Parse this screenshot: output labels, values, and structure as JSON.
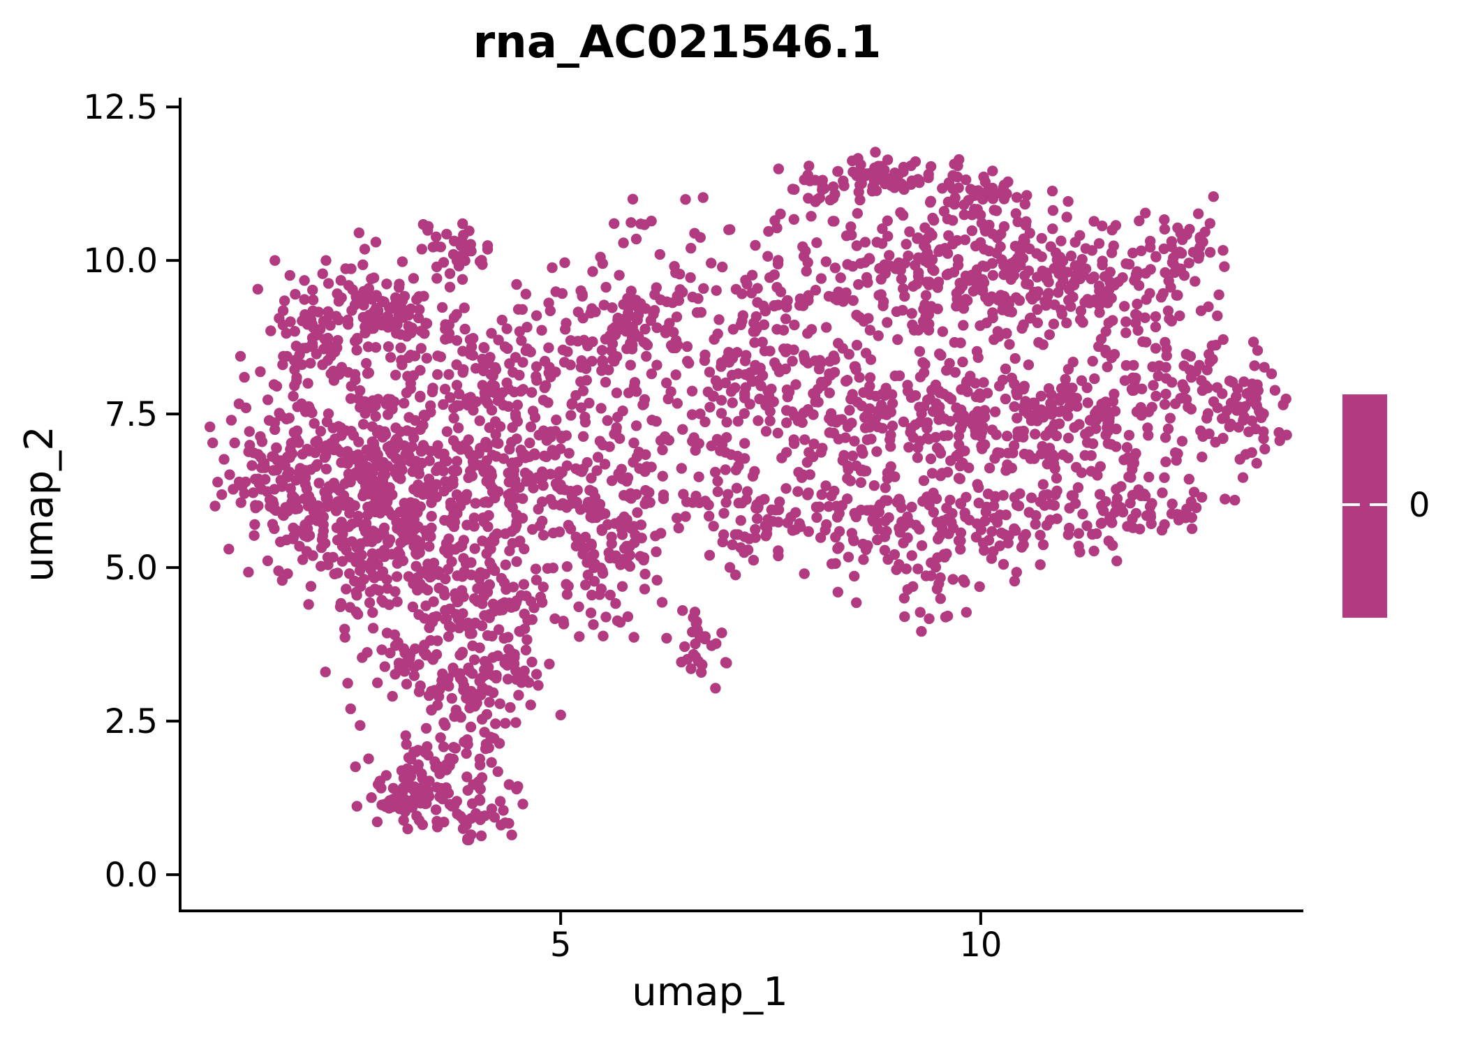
{
  "title": "rna_AC021546.1",
  "colorbar": {
    "tick_label": "0",
    "tick_value": 0,
    "color": "#B13A80"
  },
  "chart_data": {
    "type": "scatter",
    "title": "rna_AC021546.1",
    "xlabel": "umap_1",
    "ylabel": "umap_2",
    "xlim": [
      0.47,
      13.84
    ],
    "ylim": [
      -0.59,
      12.65
    ],
    "x_ticks": [
      5,
      10
    ],
    "x_tick_labels": [
      "5",
      "10"
    ],
    "y_ticks": [
      0,
      2.5,
      5,
      7.5,
      10,
      12.5
    ],
    "y_tick_labels": [
      "0.0",
      "2.5",
      "5.0",
      "7.5",
      "10.0",
      "12.5"
    ],
    "grid": false,
    "legend": {
      "type": "colorbar",
      "position": "right",
      "tick_labels": [
        "0"
      ],
      "single_value": 0
    },
    "point_color": "#B13A80",
    "point_radius_px": 7.7,
    "feature_value_all_points": 0,
    "seed": 7,
    "clusters_comment": "each cluster = [center_x, center_y, sigma_x, sigma_y, n_points] in umap coords, approximating the plotted cell density",
    "clusters": [
      [
        3.67,
        10.2,
        0.2,
        0.25,
        28
      ],
      [
        3.1,
        9.15,
        0.5,
        0.45,
        120
      ],
      [
        2.3,
        8.85,
        0.42,
        0.5,
        85
      ],
      [
        1.55,
        6.6,
        0.33,
        0.8,
        85
      ],
      [
        2.5,
        7.0,
        0.55,
        0.6,
        170
      ],
      [
        3.4,
        6.35,
        0.6,
        0.65,
        190
      ],
      [
        2.4,
        5.8,
        0.45,
        0.5,
        120
      ],
      [
        4.25,
        7.9,
        0.45,
        0.65,
        105
      ],
      [
        4.5,
        6.7,
        0.38,
        0.5,
        75
      ],
      [
        3.2,
        4.9,
        0.5,
        0.45,
        120
      ],
      [
        4.1,
        4.4,
        0.42,
        0.45,
        85
      ],
      [
        3.5,
        3.35,
        0.45,
        0.4,
        75
      ],
      [
        3.9,
        2.4,
        0.32,
        0.38,
        45
      ],
      [
        3.6,
        1.62,
        0.42,
        0.28,
        55
      ],
      [
        3.2,
        1.25,
        0.3,
        0.22,
        50
      ],
      [
        4.0,
        0.98,
        0.28,
        0.18,
        30
      ],
      [
        4.3,
        3.3,
        0.28,
        0.3,
        35
      ],
      [
        5.35,
        6.0,
        0.38,
        1.1,
        110
      ],
      [
        5.6,
        5.0,
        0.35,
        0.5,
        40
      ],
      [
        5.0,
        8.6,
        0.4,
        0.5,
        45
      ],
      [
        6.2,
        9.3,
        0.75,
        0.75,
        80
      ],
      [
        5.8,
        9.05,
        0.25,
        0.3,
        40
      ],
      [
        6.7,
        8.0,
        0.5,
        0.6,
        50
      ],
      [
        5.5,
        7.3,
        0.35,
        0.7,
        35
      ],
      [
        6.2,
        6.2,
        0.5,
        0.8,
        35
      ],
      [
        6.6,
        6.5,
        0.35,
        0.6,
        18
      ],
      [
        6.72,
        3.62,
        0.14,
        0.3,
        26
      ],
      [
        8.95,
        11.35,
        0.32,
        0.18,
        55
      ],
      [
        8.1,
        11.1,
        0.22,
        0.2,
        25
      ],
      [
        10.0,
        11.0,
        0.38,
        0.3,
        50
      ],
      [
        9.3,
        9.9,
        0.75,
        0.6,
        185
      ],
      [
        10.6,
        9.7,
        0.55,
        0.55,
        120
      ],
      [
        7.6,
        8.6,
        0.45,
        0.75,
        110
      ],
      [
        11.8,
        9.6,
        0.5,
        0.55,
        95
      ],
      [
        12.35,
        10.35,
        0.3,
        0.3,
        28
      ],
      [
        8.8,
        7.6,
        0.7,
        0.55,
        155
      ],
      [
        10.2,
        7.4,
        0.7,
        0.55,
        145
      ],
      [
        11.35,
        7.3,
        0.5,
        0.5,
        85
      ],
      [
        12.4,
        7.95,
        0.42,
        0.5,
        75
      ],
      [
        13.15,
        7.5,
        0.22,
        0.45,
        50
      ],
      [
        8.6,
        5.9,
        0.55,
        0.4,
        85
      ],
      [
        9.9,
        5.7,
        0.55,
        0.4,
        85
      ],
      [
        11.2,
        5.9,
        0.5,
        0.38,
        65
      ],
      [
        12.15,
        6.05,
        0.38,
        0.35,
        42
      ],
      [
        7.35,
        5.8,
        0.42,
        0.4,
        55
      ],
      [
        9.5,
        4.65,
        0.45,
        0.3,
        26
      ]
    ],
    "outlier_points": [
      [
        1.08,
        7.4
      ],
      [
        1.05,
        5.3
      ],
      [
        2.6,
        10.45
      ],
      [
        2.8,
        10.3
      ],
      [
        5.9,
        10.35
      ],
      [
        5.5,
        9.95
      ],
      [
        6.45,
        4.3
      ],
      [
        6.62,
        4.12
      ],
      [
        6.0,
        4.65
      ],
      [
        5.8,
        4.2
      ],
      [
        13.6,
        7.65
      ],
      [
        13.55,
        7.2
      ],
      [
        12.9,
        9.9
      ],
      [
        7.0,
        10.5
      ],
      [
        7.55,
        10.65
      ],
      [
        6.9,
        6.9
      ],
      [
        5.0,
        2.6
      ],
      [
        4.55,
        1.15
      ],
      [
        2.5,
        2.7
      ],
      [
        2.2,
        3.3
      ],
      [
        6.55,
        10.2
      ],
      [
        7.9,
        4.9
      ],
      [
        8.3,
        4.6
      ],
      [
        2.0,
        4.4
      ],
      [
        1.75,
        4.9
      ]
    ]
  }
}
